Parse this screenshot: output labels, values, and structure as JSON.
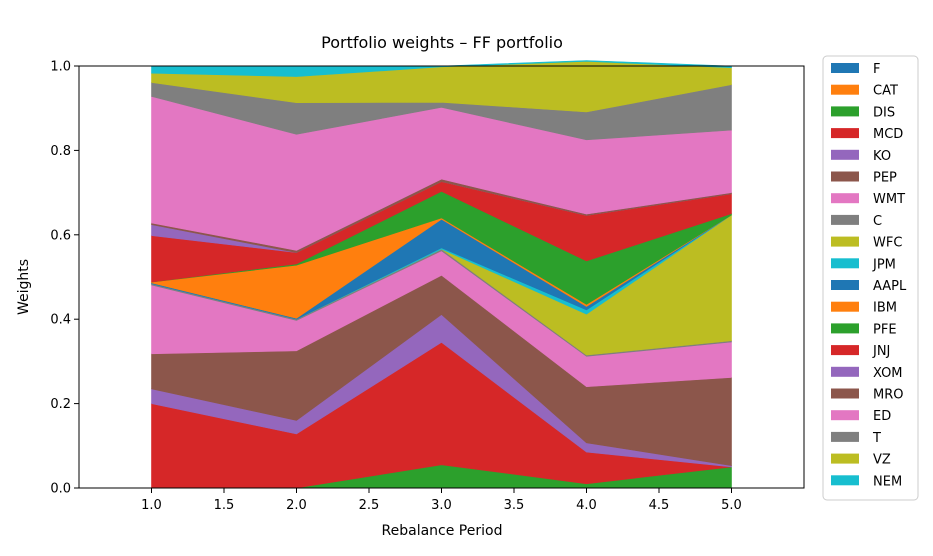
{
  "chart_data": {
    "type": "area",
    "title": "Portfolio weights – FF portfolio",
    "xlabel": "Rebalance Period",
    "ylabel": "Weights",
    "x": [
      1,
      2,
      3,
      4,
      5
    ],
    "xlim": [
      0.5,
      5.5
    ],
    "ylim": [
      0,
      1.0
    ],
    "xticks": [
      "1.0",
      "1.5",
      "2.0",
      "2.5",
      "3.0",
      "3.5",
      "4.0",
      "4.5",
      "5.0"
    ],
    "yticks": [
      "0.0",
      "0.2",
      "0.4",
      "0.6",
      "0.8",
      "1.0"
    ],
    "grid": false,
    "legend_position": "outside-right",
    "series": [
      {
        "name": "F",
        "color": "#1f77b4",
        "values": [
          0.0,
          0.0,
          0.0,
          0.0,
          0.0
        ]
      },
      {
        "name": "CAT",
        "color": "#ff7f0e",
        "values": [
          0.0,
          0.0,
          0.0,
          0.0,
          0.0
        ]
      },
      {
        "name": "DIS",
        "color": "#2ca02c",
        "values": [
          0.0,
          0.0,
          0.055,
          0.01,
          0.05
        ]
      },
      {
        "name": "MCD",
        "color": "#d62728",
        "values": [
          0.2,
          0.128,
          0.29,
          0.075,
          0.0
        ]
      },
      {
        "name": "KO",
        "color": "#9467bd",
        "values": [
          0.035,
          0.032,
          0.066,
          0.022,
          0.003
        ]
      },
      {
        "name": "PEP",
        "color": "#8c564b",
        "values": [
          0.083,
          0.165,
          0.093,
          0.133,
          0.209
        ]
      },
      {
        "name": "WMT",
        "color": "#e377c2",
        "values": [
          0.163,
          0.072,
          0.058,
          0.072,
          0.084
        ]
      },
      {
        "name": "C",
        "color": "#7f7f7f",
        "values": [
          0.003,
          0.003,
          0.004,
          0.003,
          0.003
        ]
      },
      {
        "name": "WFC",
        "color": "#bcbd22",
        "values": [
          0.0,
          0.0,
          0.0,
          0.097,
          0.298
        ]
      },
      {
        "name": "JPM",
        "color": "#17becf",
        "values": [
          0.0,
          0.0,
          0.003,
          0.01,
          0.0
        ]
      },
      {
        "name": "AAPL",
        "color": "#1f77b4",
        "values": [
          0.002,
          0.002,
          0.068,
          0.008,
          0.0
        ]
      },
      {
        "name": "IBM",
        "color": "#ff7f0e",
        "values": [
          0.002,
          0.126,
          0.003,
          0.005,
          0.0
        ]
      },
      {
        "name": "PFE",
        "color": "#2ca02c",
        "values": [
          0.0,
          0.003,
          0.063,
          0.103,
          0.003
        ]
      },
      {
        "name": "JNJ",
        "color": "#d62728",
        "values": [
          0.11,
          0.027,
          0.023,
          0.108,
          0.047
        ]
      },
      {
        "name": "XOM",
        "color": "#9467bd",
        "values": [
          0.026,
          0.0,
          0.0,
          0.0,
          0.0
        ]
      },
      {
        "name": "MRO",
        "color": "#8c564b",
        "values": [
          0.004,
          0.005,
          0.006,
          0.003,
          0.003
        ]
      },
      {
        "name": "ED",
        "color": "#e377c2",
        "values": [
          0.3,
          0.275,
          0.17,
          0.176,
          0.148
        ]
      },
      {
        "name": "T",
        "color": "#7f7f7f",
        "values": [
          0.033,
          0.075,
          0.012,
          0.066,
          0.108
        ]
      },
      {
        "name": "VZ",
        "color": "#bcbd22",
        "values": [
          0.022,
          0.062,
          0.084,
          0.12,
          0.04
        ]
      },
      {
        "name": "NEM",
        "color": "#17becf",
        "values": [
          0.017,
          0.025,
          0.002,
          0.002,
          0.004
        ]
      }
    ]
  }
}
